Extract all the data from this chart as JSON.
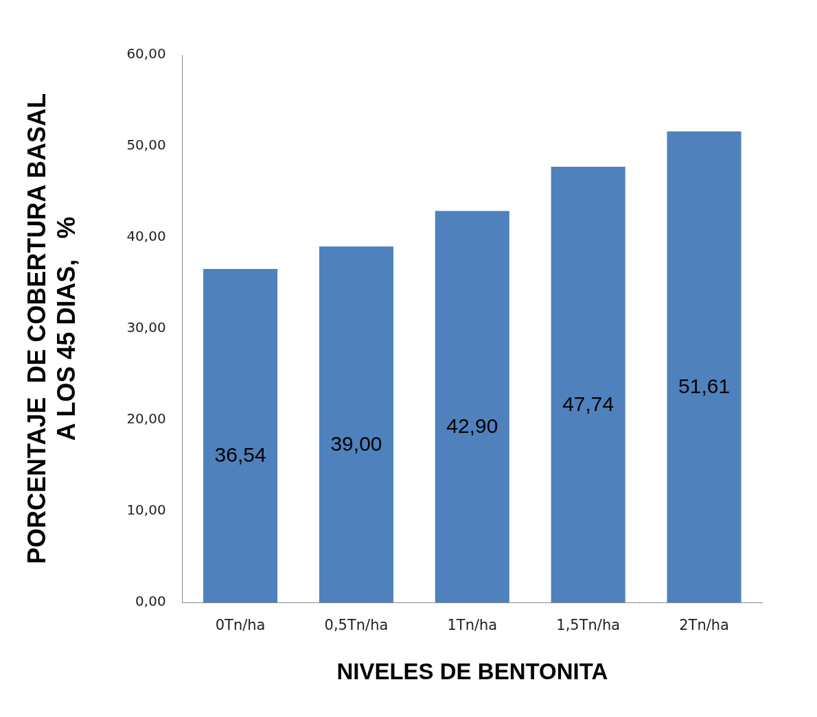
{
  "chart_data": {
    "type": "bar",
    "xlabel": "NIVELES DE BENTONITA",
    "ylabel": "PORCENTAJE  DE COBERTURA BASAL\nA LOS 45 DIAS,   %",
    "categories": [
      "0Tn/ha",
      "0,5Tn/ha",
      "1Tn/ha",
      "1,5Tn/ha",
      "2Tn/ha"
    ],
    "values": [
      36.54,
      39.0,
      42.9,
      47.74,
      51.61
    ],
    "value_labels": [
      "36,54",
      "39,00",
      "42,90",
      "47,74",
      "51,61"
    ],
    "color": "#4f81bd",
    "ylim": [
      0,
      60
    ],
    "yticks": [
      {
        "value": 0,
        "label": "0,00"
      },
      {
        "value": 10,
        "label": "10,00"
      },
      {
        "value": 20,
        "label": "20,00"
      },
      {
        "value": 30,
        "label": "30,00"
      },
      {
        "value": 40,
        "label": "40,00"
      },
      {
        "value": 50,
        "label": "50,00"
      },
      {
        "value": 60,
        "label": "60,00"
      }
    ],
    "grid": false,
    "legend": false
  }
}
